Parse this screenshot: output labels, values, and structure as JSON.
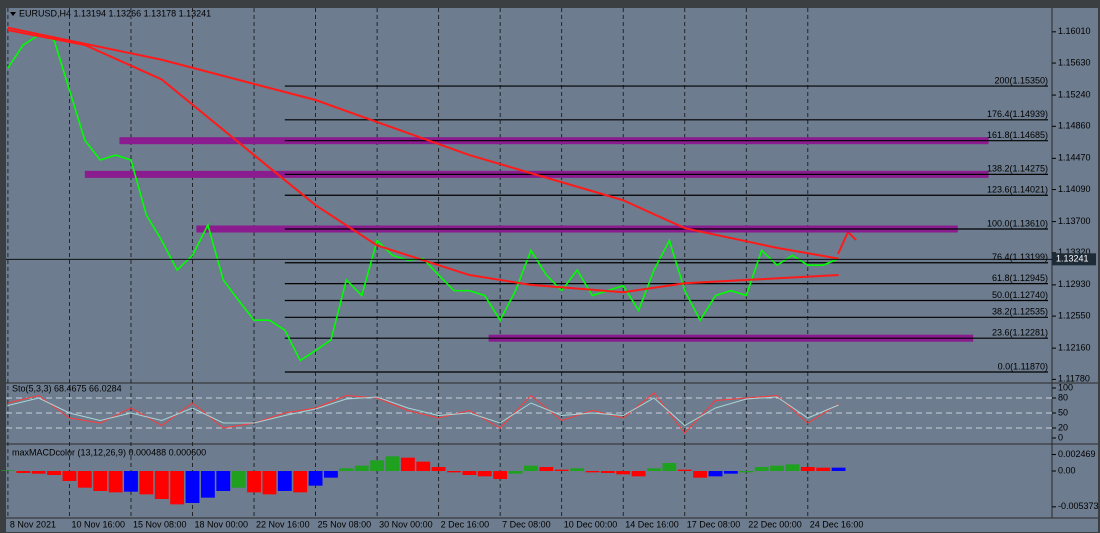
{
  "chart_data": [
    {
      "type": "line",
      "title": "EURUSD,H4  1.13194 1.13266 1.13178 1.13241",
      "xlim": [
        -0.5,
        271.5
      ],
      "xticks": [
        {
          "value": 0,
          "label": "8 Nov 2021"
        },
        {
          "value": 16,
          "label": "10 Nov 16:00"
        },
        {
          "value": 32,
          "label": "15 Nov 08:00"
        },
        {
          "value": 48,
          "label": "18 Nov 00:00"
        },
        {
          "value": 64,
          "label": "22 Nov 16:00"
        },
        {
          "value": 80,
          "label": "25 Nov 08:00"
        },
        {
          "value": 96,
          "label": "30 Nov 00:00"
        },
        {
          "value": 112,
          "label": "2 Dec 16:00"
        },
        {
          "value": 128,
          "label": "7 Dec 08:00"
        },
        {
          "value": 144,
          "label": "10 Dec 00:00"
        },
        {
          "value": 160,
          "label": "14 Dec 16:00"
        },
        {
          "value": 176,
          "label": "17 Dec 08:00"
        },
        {
          "value": 192,
          "label": "22 Dec 00:00"
        },
        {
          "value": 208,
          "label": "24 Dec 16:00"
        }
      ],
      "ylim": [
        1.1176,
        1.163
      ],
      "yticks": [
        {
          "value": 1.1601,
          "label": "1.16010"
        },
        {
          "value": 1.1563,
          "label": "1.15630"
        },
        {
          "value": 1.1524,
          "label": "1.15240"
        },
        {
          "value": 1.1486,
          "label": "1.14860"
        },
        {
          "value": 1.1447,
          "label": "1.14470"
        },
        {
          "value": 1.1409,
          "label": "1.14090"
        },
        {
          "value": 1.137,
          "label": "1.13700"
        },
        {
          "value": 1.1332,
          "label": "1.13320"
        },
        {
          "value": 1.1293,
          "label": "1.12930"
        },
        {
          "value": 1.1255,
          "label": "1.12550"
        },
        {
          "value": 1.1216,
          "label": "1.12160"
        },
        {
          "value": 1.1178,
          "label": "1.11780"
        }
      ],
      "series": [
        {
          "color": "#00ff00",
          "x": [
            0,
            4,
            8,
            12,
            16,
            20,
            24,
            28,
            32,
            36,
            40,
            44,
            48,
            52,
            56,
            60,
            64,
            68,
            72,
            76,
            80,
            84,
            88,
            92,
            96,
            100,
            104,
            108,
            112,
            116,
            120,
            124,
            128,
            132,
            136,
            140,
            144,
            148,
            152,
            156,
            160,
            164,
            168,
            172,
            176,
            180,
            184,
            188,
            192,
            196,
            200,
            204,
            208,
            212,
            216
          ],
          "values": [
            1.1557,
            1.1585,
            1.1597,
            1.1591,
            1.153,
            1.1469,
            1.1445,
            1.1451,
            1.1445,
            1.1378,
            1.1347,
            1.1311,
            1.1329,
            1.1366,
            1.1299,
            1.1274,
            1.125,
            1.125,
            1.1238,
            1.1201,
            1.1213,
            1.1226,
            1.1299,
            1.128,
            1.1347,
            1.1329,
            1.1323,
            1.1325,
            1.1305,
            1.1286,
            1.1286,
            1.128,
            1.125,
            1.1286,
            1.1335,
            1.1305,
            1.1286,
            1.1311,
            1.128,
            1.1286,
            1.1292,
            1.1262,
            1.1311,
            1.1347,
            1.1286,
            1.125,
            1.128,
            1.1286,
            1.128,
            1.1335,
            1.1317,
            1.1329,
            1.1317,
            1.1317,
            1.1325
          ]
        },
        {
          "color": "#ff1a1a",
          "x": [
            0,
            40,
            80,
            120,
            160,
            176,
            200,
            216
          ],
          "values": [
            1.1606,
            1.1567,
            1.1518,
            1.1451,
            1.1396,
            1.1362,
            1.1338,
            1.1325
          ]
        },
        {
          "color": "#ff1a1a",
          "x": [
            0,
            20,
            40,
            64,
            80,
            96,
            120,
            136,
            160,
            176,
            196,
            216
          ],
          "values": [
            1.1603,
            1.1585,
            1.1543,
            1.1451,
            1.139,
            1.1341,
            1.1305,
            1.1293,
            1.1284,
            1.1295,
            1.13,
            1.1305
          ]
        }
      ],
      "fib_x_start": 72,
      "levels": [
        {
          "value": 1.1535,
          "label": "200(1.15350)"
        },
        {
          "value": 1.14939,
          "label": "176.4(1.14939)"
        },
        {
          "value": 1.14685,
          "label": "161.8(1.14685)"
        },
        {
          "value": 1.14275,
          "label": "138.2(1.14275)"
        },
        {
          "value": 1.14021,
          "label": "123.6(1.14021)"
        },
        {
          "value": 1.1361,
          "label": "100.0(1.13610)"
        },
        {
          "value": 1.13199,
          "label": "76.4(1.13199)"
        },
        {
          "value": 1.12945,
          "label": "61.8(1.12945)"
        },
        {
          "value": 1.1274,
          "label": "50.0(1.12740)"
        },
        {
          "value": 1.12535,
          "label": "38.2(1.12535)"
        },
        {
          "value": 1.12281,
          "label": "23.6(1.12281)"
        },
        {
          "value": 1.1187,
          "label": "0.0(1.11870)"
        }
      ],
      "zone_color": "#8a1c8f",
      "zones": [
        {
          "value": 1.14685,
          "x": 29,
          "x_end": 255
        },
        {
          "value": 1.14275,
          "x": 20,
          "x_end": 255
        },
        {
          "value": 1.1361,
          "x": 49,
          "x_end": 247
        },
        {
          "value": 1.12281,
          "x": 125,
          "x_end": 251
        }
      ],
      "last_price": 1.13241
    },
    {
      "type": "line",
      "title": "Sto(5,3,3) 68.4675 66.0284",
      "xlim": [
        -0.5,
        271.5
      ],
      "ylim": [
        0,
        100
      ],
      "yticks": [
        100,
        80,
        50,
        20,
        0
      ],
      "series": [
        {
          "color": "#ff3a3a",
          "x": [
            0,
            8,
            16,
            24,
            32,
            40,
            48,
            56,
            64,
            72,
            80,
            88,
            96,
            104,
            112,
            120,
            128,
            136,
            144,
            152,
            160,
            168,
            176,
            184,
            192,
            200,
            208,
            216
          ],
          "values": [
            70,
            85,
            40,
            30,
            60,
            25,
            70,
            20,
            30,
            50,
            60,
            85,
            80,
            55,
            40,
            55,
            20,
            85,
            35,
            55,
            40,
            90,
            10,
            75,
            80,
            85,
            30,
            68
          ]
        },
        {
          "color": "#a9d4d4",
          "x": [
            0,
            8,
            16,
            24,
            32,
            40,
            48,
            56,
            64,
            72,
            80,
            88,
            96,
            104,
            112,
            120,
            128,
            136,
            144,
            152,
            160,
            168,
            176,
            184,
            192,
            200,
            208,
            216
          ],
          "values": [
            65,
            80,
            50,
            35,
            50,
            35,
            60,
            30,
            30,
            45,
            58,
            78,
            82,
            60,
            45,
            50,
            30,
            70,
            45,
            50,
            45,
            80,
            25,
            60,
            78,
            82,
            40,
            66
          ]
        }
      ]
    },
    {
      "type": "bar",
      "title": "maxMACDcolor (13,12,26,9) 0.000488 0.000600",
      "xlim": [
        -0.5,
        271.5
      ],
      "ylim": [
        -0.0066,
        0.0036
      ],
      "yticks": [
        0.002469,
        {
          "value": 0,
          "label": "0.00"
        },
        -0.005373
      ],
      "x": [
        0,
        4,
        8,
        12,
        16,
        20,
        24,
        28,
        32,
        36,
        40,
        44,
        48,
        52,
        56,
        60,
        64,
        68,
        72,
        76,
        80,
        84,
        88,
        92,
        96,
        100,
        104,
        108,
        112,
        116,
        120,
        124,
        128,
        132,
        136,
        140,
        144,
        148,
        152,
        156,
        160,
        164,
        168,
        172,
        176,
        180,
        184,
        188,
        192,
        196,
        200,
        204,
        208,
        212,
        216
      ],
      "values": [
        0.0001,
        -0.0003,
        -0.0004,
        -0.0006,
        -0.0015,
        -0.0025,
        -0.003,
        -0.0032,
        -0.0031,
        -0.0035,
        -0.0042,
        -0.005,
        -0.0048,
        -0.004,
        -0.003,
        -0.0025,
        -0.0032,
        -0.0035,
        -0.003,
        -0.0032,
        -0.0022,
        -0.001,
        0.0004,
        0.0008,
        0.0016,
        0.0022,
        0.002,
        0.0014,
        0.0006,
        -0.0002,
        -0.0006,
        -0.0008,
        -0.0012,
        -0.0004,
        0.0008,
        0.0006,
        0.0002,
        0.0004,
        -0.0002,
        -0.0003,
        -0.0005,
        -0.0008,
        0.0004,
        0.0012,
        0.0002,
        -0.001,
        -0.0008,
        -0.0004,
        -0.0002,
        0.0006,
        0.0008,
        0.001,
        0.0006,
        0.0005,
        0.0005
      ],
      "colors": [
        "#1fa01f",
        "#ff0000",
        "#ff0000",
        "#ff0000",
        "#ff0000",
        "#ff0000",
        "#ff0000",
        "#ff0000",
        "#0000ff",
        "#ff0000",
        "#ff0000",
        "#ff0000",
        "#0000ff",
        "#0000ff",
        "#0000ff",
        "#1fa01f",
        "#ff0000",
        "#ff0000",
        "#0000ff",
        "#ff0000",
        "#0000ff",
        "#0000ff",
        "#1fa01f",
        "#1fa01f",
        "#1fa01f",
        "#1fa01f",
        "#ff0000",
        "#ff0000",
        "#ff0000",
        "#ff0000",
        "#ff0000",
        "#ff0000",
        "#ff0000",
        "#1fa01f",
        "#1fa01f",
        "#ff0000",
        "#ff0000",
        "#1fa01f",
        "#ff0000",
        "#ff0000",
        "#ff0000",
        "#ff0000",
        "#1fa01f",
        "#1fa01f",
        "#ff0000",
        "#ff0000",
        "#0000ff",
        "#0000ff",
        "#1fa01f",
        "#1fa01f",
        "#1fa01f",
        "#1fa01f",
        "#ff0000",
        "#ff0000",
        "#0000ff"
      ]
    }
  ]
}
